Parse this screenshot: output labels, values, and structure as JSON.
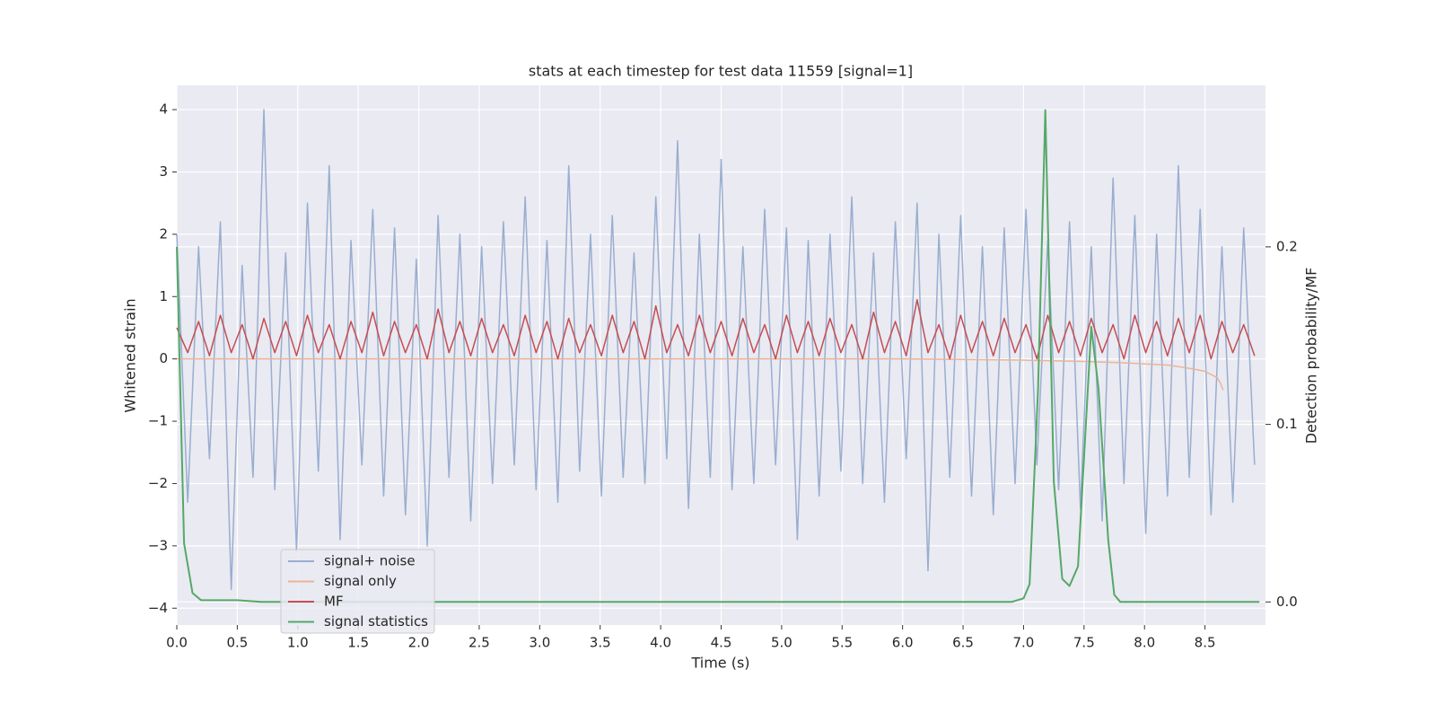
{
  "chart_data": {
    "type": "line",
    "title": "stats at each timestep for test data 11559 [signal=1]",
    "xlabel": "Time (s)",
    "ylabel": "Whitened strain",
    "y2label": "Detection probability/MF",
    "xlim": [
      0,
      9.0
    ],
    "ylim": [
      -4.27,
      4.39
    ],
    "y2lim": [
      -0.013,
      0.291
    ],
    "xticks": [
      {
        "value": 0,
        "label": "0.0"
      },
      0.5,
      {
        "value": 1,
        "label": "1.0"
      },
      1.5,
      {
        "value": 2,
        "label": "2.0"
      },
      2.5,
      {
        "value": 3,
        "label": "3.0"
      },
      3.5,
      {
        "value": 4,
        "label": "4.0"
      },
      4.5,
      {
        "value": 5,
        "label": "5.0"
      },
      5.5,
      {
        "value": 6,
        "label": "6.0"
      },
      6.5,
      {
        "value": 7,
        "label": "7.0"
      },
      7.5,
      {
        "value": 8,
        "label": "8.0"
      },
      8.5
    ],
    "yticks": [
      {
        "value": -4,
        "label": "−4"
      },
      {
        "value": -3,
        "label": "−3"
      },
      {
        "value": -2,
        "label": "−2"
      },
      {
        "value": -1,
        "label": "−1"
      },
      0,
      1,
      2,
      3,
      4
    ],
    "y2ticks": [
      {
        "value": 0,
        "label": "0.0"
      },
      {
        "value": 0.1,
        "label": "0.1"
      },
      {
        "value": 0.2,
        "label": "0.2"
      }
    ],
    "grid": true,
    "legend": "lower left",
    "x": [
      0,
      0.09,
      0.18,
      0.27,
      0.36,
      0.45,
      0.54,
      0.63,
      0.72,
      0.81,
      0.9,
      0.99,
      1.08,
      1.17,
      1.26,
      1.35,
      1.44,
      1.53,
      1.62,
      1.71,
      1.8,
      1.89,
      1.98,
      2.07,
      2.16,
      2.25,
      2.34,
      2.43,
      2.52,
      2.61,
      2.7,
      2.79,
      2.88,
      2.97,
      3.06,
      3.15,
      3.24,
      3.33,
      3.42,
      3.51,
      3.6,
      3.69,
      3.78,
      3.87,
      3.96,
      4.05,
      4.14,
      4.23,
      4.32,
      4.41,
      4.5,
      4.59,
      4.68,
      4.77,
      4.86,
      4.95,
      5.04,
      5.13,
      5.22,
      5.31,
      5.4,
      5.49,
      5.58,
      5.67,
      5.76,
      5.85,
      5.94,
      6.03,
      6.12,
      6.21,
      6.3,
      6.39,
      6.48,
      6.57,
      6.66,
      6.75,
      6.84,
      6.93,
      7.02,
      7.11,
      7.2,
      7.29,
      7.38,
      7.47,
      7.56,
      7.65,
      7.74,
      7.83,
      7.92,
      8.01,
      8.1,
      8.19,
      8.28,
      8.37,
      8.46,
      8.55,
      8.64,
      8.73,
      8.82,
      8.91
    ],
    "series": [
      {
        "name": "signal+ noise",
        "color": "#99aed0",
        "values": [
          2.0,
          -2.3,
          1.8,
          -1.6,
          2.2,
          -3.7,
          1.5,
          -1.9,
          4.0,
          -2.1,
          1.7,
          -3.1,
          2.5,
          -1.8,
          3.1,
          -2.9,
          1.9,
          -1.7,
          2.4,
          -2.2,
          2.1,
          -2.5,
          1.6,
          -3.0,
          2.3,
          -1.9,
          2.0,
          -2.6,
          1.8,
          -2.0,
          2.2,
          -1.7,
          2.6,
          -2.1,
          1.9,
          -2.3,
          3.1,
          -1.8,
          2.0,
          -2.2,
          2.3,
          -1.9,
          1.7,
          -2.0,
          2.6,
          -1.6,
          3.5,
          -2.4,
          2.0,
          -1.9,
          3.2,
          -2.1,
          1.8,
          -2.0,
          2.4,
          -1.7,
          2.1,
          -2.9,
          1.9,
          -2.2,
          2.0,
          -1.8,
          2.6,
          -2.0,
          1.7,
          -2.3,
          2.2,
          -1.6,
          2.5,
          -3.4,
          2.0,
          -1.9,
          2.3,
          -2.2,
          1.8,
          -2.5,
          2.1,
          -2.0,
          2.4,
          -1.7,
          1.9,
          -2.1,
          2.2,
          -2.4,
          1.8,
          -2.6,
          2.9,
          -2.0,
          2.3,
          -2.8,
          2.0,
          -2.2,
          3.1,
          -1.9,
          2.4,
          -2.5,
          1.8,
          -2.3,
          2.1,
          -1.7
        ]
      },
      {
        "name": "signal only",
        "color": "#e9b49a",
        "x": [
          0,
          6.0,
          7.0,
          7.5,
          7.8,
          8.0,
          8.2,
          8.3,
          8.4,
          8.5,
          8.55,
          8.6,
          8.63,
          8.65
        ],
        "values": [
          0,
          0,
          -0.02,
          -0.04,
          -0.06,
          -0.08,
          -0.1,
          -0.13,
          -0.16,
          -0.2,
          -0.25,
          -0.3,
          -0.4,
          -0.5
        ]
      },
      {
        "name": "MF",
        "color": "#c44e52",
        "values": [
          0.5,
          0.1,
          0.6,
          0.05,
          0.7,
          0.1,
          0.55,
          0.0,
          0.65,
          0.1,
          0.6,
          0.05,
          0.7,
          0.1,
          0.55,
          0.0,
          0.6,
          0.1,
          0.75,
          0.05,
          0.6,
          0.1,
          0.55,
          0.0,
          0.8,
          0.1,
          0.6,
          0.05,
          0.65,
          0.1,
          0.55,
          0.05,
          0.7,
          0.1,
          0.6,
          0.0,
          0.65,
          0.1,
          0.55,
          0.05,
          0.7,
          0.1,
          0.6,
          0.0,
          0.85,
          0.1,
          0.55,
          0.05,
          0.7,
          0.1,
          0.6,
          0.05,
          0.65,
          0.1,
          0.55,
          0.0,
          0.7,
          0.1,
          0.6,
          0.05,
          0.65,
          0.1,
          0.55,
          0.0,
          0.75,
          0.1,
          0.6,
          0.05,
          0.95,
          0.1,
          0.55,
          0.0,
          0.7,
          0.1,
          0.6,
          0.05,
          0.65,
          0.1,
          0.55,
          0.0,
          0.7,
          0.1,
          0.6,
          0.05,
          0.65,
          0.1,
          0.55,
          0.0,
          0.7,
          0.1,
          0.6,
          0.05,
          0.65,
          0.1,
          0.7,
          0.0,
          0.6,
          0.1,
          0.55,
          0.05
        ]
      },
      {
        "name": "signal statistics",
        "color": "#55a868",
        "axis": "y2",
        "x": [
          0,
          0.06,
          0.13,
          0.2,
          0.5,
          0.7,
          1.5,
          3.0,
          5.0,
          6.9,
          7.0,
          7.05,
          7.12,
          7.18,
          7.25,
          7.32,
          7.38,
          7.45,
          7.56,
          7.62,
          7.7,
          7.75,
          7.8,
          8.5,
          8.95
        ],
        "values": [
          0.2,
          0.033,
          0.005,
          0.001,
          0.001,
          0.0,
          0.0,
          0.0,
          0.0,
          0.0,
          0.002,
          0.01,
          0.12,
          0.277,
          0.068,
          0.013,
          0.009,
          0.02,
          0.155,
          0.12,
          0.035,
          0.004,
          0.0,
          0.0,
          0.0
        ]
      }
    ]
  }
}
